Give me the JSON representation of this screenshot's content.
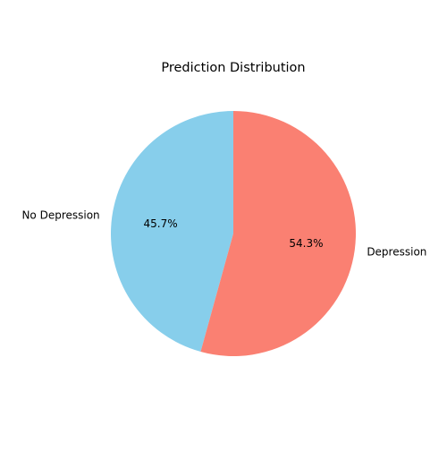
{
  "chart_data": {
    "type": "pie",
    "title": "Prediction Distribution",
    "start_angle_deg": 90,
    "direction": "counterclockwise",
    "slices": [
      {
        "label": "No Depression",
        "value": 45.7,
        "pct_label": "45.7%",
        "color": "#87ceeb"
      },
      {
        "label": "Depression",
        "value": 54.3,
        "pct_label": "54.3%",
        "color": "#fa8072"
      }
    ]
  }
}
